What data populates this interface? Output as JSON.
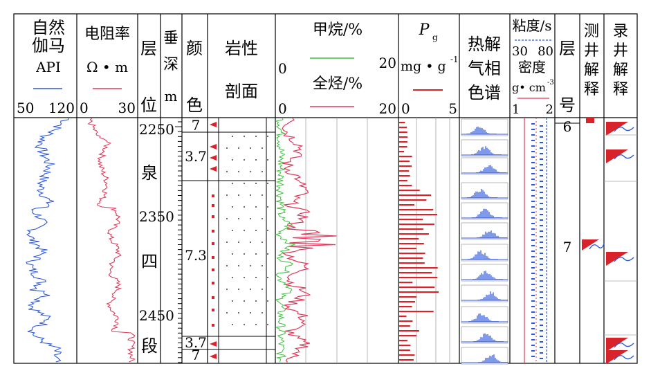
{
  "header": {
    "gr": {
      "title1": "自然",
      "title2": "伽马",
      "unit": "API",
      "min": "50",
      "max": "120",
      "color": "#2a55d8"
    },
    "res": {
      "title": "电阻率",
      "unit": "Ω • m",
      "min": "0",
      "max": "30",
      "color": "#e0385a"
    },
    "layer": {
      "top": "层",
      "bottom": "位"
    },
    "depth": {
      "c1": "垂",
      "c2": "深",
      "c3": "m"
    },
    "color_col": {
      "top": "颜",
      "bottom": "色"
    },
    "litho": {
      "top": "岩性",
      "bottom": "剖面"
    },
    "gas": {
      "methane": "甲烷/%",
      "total": "全烃/%",
      "min1": "0",
      "max1": "20",
      "min2": "0",
      "max2": "20",
      "methane_color": "#3cbf3c",
      "total_color": "#e0385a"
    },
    "pg": {
      "symbol": "P",
      "sub": "g",
      "unit": "mg • g",
      "sup": "-1",
      "min": "0",
      "max": "5",
      "color": "#d8232a"
    },
    "pyro": {
      "c1": "热解",
      "c2": "气相",
      "c3": "色谱"
    },
    "visc": {
      "title": "粘度/s",
      "min1": "30",
      "max1": "80",
      "dens": "密度",
      "unit": "g• cm",
      "sup": "-3",
      "min2": "1",
      "max2": "2"
    },
    "layer_no": {
      "top": "层",
      "bottom": "号"
    },
    "well_interp": {
      "c1": "测",
      "c2": "井",
      "c3": "解",
      "c4": "释"
    },
    "mud_interp": {
      "c1": "录",
      "c2": "井",
      "c3": "解",
      "c4": "释"
    }
  },
  "depth_labels": [
    "2250",
    "2350",
    "2450"
  ],
  "formation_chars": [
    "泉",
    "四",
    "段"
  ],
  "color_codes": [
    "7",
    "3.7",
    "7.3",
    "3.7",
    "7"
  ],
  "layer_numbers": [
    "6",
    "7"
  ],
  "pyro_labels": [
    "",
    "",
    "",
    "",
    "",
    "",
    "",
    "",
    "",
    "",
    "",
    ""
  ]
}
